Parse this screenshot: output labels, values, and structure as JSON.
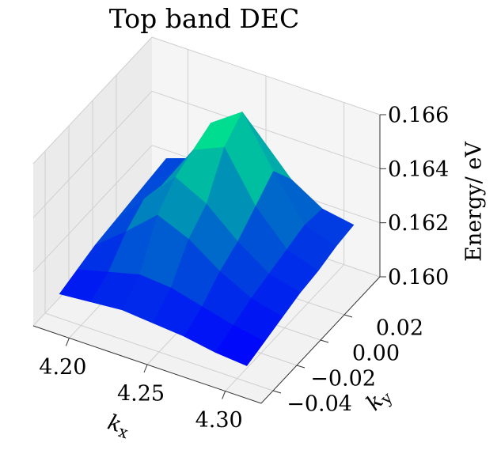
{
  "chart_data": {
    "type": "surface",
    "title": "Top band DEC",
    "xlabel": "kx",
    "ylabel": "ky",
    "zlabel": "Energy/ eV",
    "colormap": "winter",
    "grid": true,
    "x": [
      4.19,
      4.21,
      4.23,
      4.25,
      4.27,
      4.29,
      4.31
    ],
    "y": [
      -0.045,
      -0.03,
      -0.015,
      0,
      0.015,
      0.03,
      0.045
    ],
    "z": [
      [
        0.1612,
        0.1613,
        0.1614,
        0.1613,
        0.1612,
        0.161,
        0.1609
      ],
      [
        0.1614,
        0.1617,
        0.162,
        0.1619,
        0.1616,
        0.1613,
        0.1611
      ],
      [
        0.1616,
        0.1625,
        0.1635,
        0.163,
        0.1622,
        0.1616,
        0.1613
      ],
      [
        0.1617,
        0.163,
        0.1642,
        0.1636,
        0.1626,
        0.1618,
        0.1615
      ],
      [
        0.1618,
        0.1628,
        0.1645,
        0.165,
        0.1632,
        0.162,
        0.1616
      ],
      [
        0.1619,
        0.1626,
        0.1648,
        0.1656,
        0.1638,
        0.1622,
        0.1618
      ],
      [
        0.162,
        0.1624,
        0.1636,
        0.164,
        0.1628,
        0.1621,
        0.1619
      ]
    ],
    "xlim": [
      4.177,
      4.323
    ],
    "ylim": [
      -0.05,
      0.05
    ],
    "zlim": [
      0.16,
      0.166
    ],
    "xticks": [
      {
        "value": 4.2,
        "label": "4.20"
      },
      4.25,
      {
        "value": 4.3,
        "label": "4.30"
      }
    ],
    "yticks": [
      {
        "value": -0.04,
        "label": "−0.04"
      },
      {
        "value": -0.02,
        "label": "−0.02"
      },
      {
        "value": 0,
        "label": "0.00"
      },
      0.02
    ],
    "zticks": [
      {
        "value": 0.16,
        "label": "0.160"
      },
      0.162,
      0.164,
      0.166
    ]
  }
}
